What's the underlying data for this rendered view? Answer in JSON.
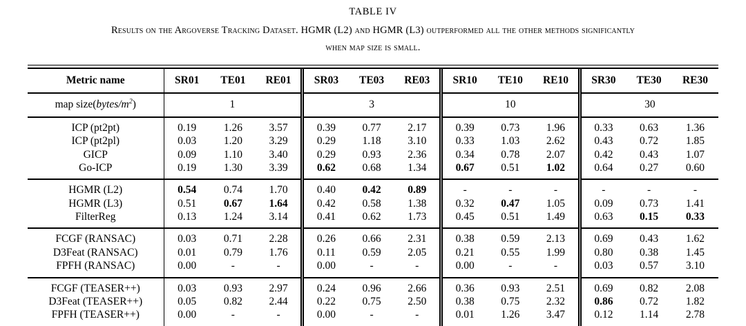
{
  "title": "TABLE IV",
  "caption": {
    "line1": "Results on the Argoverse Tracking Dataset. HGMR (L2) and HGMR (L3) outperformed all the other methods significantly",
    "line2": "when map size is small."
  },
  "colors": {
    "text": "#000000",
    "rules": "#000000",
    "background": "#ffffff"
  },
  "table": {
    "columns": [
      "Metric name",
      "SR01",
      "TE01",
      "RE01",
      "SR03",
      "TE03",
      "RE03",
      "SR10",
      "TE10",
      "RE10",
      "SR30",
      "TE30",
      "RE30"
    ],
    "map_row": {
      "label_prefix": "map size(",
      "label_italic": "bytes/m",
      "label_sup": "2",
      "label_suffix": ")",
      "values": [
        "1",
        "3",
        "10",
        "30"
      ]
    },
    "groups": [
      {
        "rows": [
          {
            "name": "ICP (pt2pt)",
            "values": [
              "0.19",
              "1.26",
              "3.57",
              "0.39",
              "0.77",
              "2.17",
              "0.39",
              "0.73",
              "1.96",
              "0.33",
              "0.63",
              "1.36"
            ],
            "bold": []
          },
          {
            "name": "ICP (pt2pl)",
            "values": [
              "0.03",
              "1.20",
              "3.29",
              "0.29",
              "1.18",
              "3.10",
              "0.33",
              "1.03",
              "2.62",
              "0.43",
              "0.72",
              "1.85"
            ],
            "bold": []
          },
          {
            "name": "GICP",
            "values": [
              "0.09",
              "1.10",
              "3.40",
              "0.29",
              "0.93",
              "2.36",
              "0.34",
              "0.78",
              "2.07",
              "0.42",
              "0.43",
              "1.07"
            ],
            "bold": []
          },
          {
            "name": "Go-ICP",
            "values": [
              "0.19",
              "1.30",
              "3.39",
              "0.62",
              "0.68",
              "1.34",
              "0.67",
              "0.51",
              "1.02",
              "0.64",
              "0.27",
              "0.60"
            ],
            "bold": [
              3,
              6,
              8
            ]
          }
        ]
      },
      {
        "rows": [
          {
            "name": "HGMR (L2)",
            "values": [
              "0.54",
              "0.74",
              "1.70",
              "0.40",
              "0.42",
              "0.89",
              "-",
              "-",
              "-",
              "-",
              "-",
              "-"
            ],
            "bold": [
              0,
              4,
              5
            ]
          },
          {
            "name": "HGMR (L3)",
            "values": [
              "0.51",
              "0.67",
              "1.64",
              "0.42",
              "0.58",
              "1.38",
              "0.32",
              "0.47",
              "1.05",
              "0.09",
              "0.73",
              "1.41"
            ],
            "bold": [
              1,
              2,
              7
            ]
          },
          {
            "name": "FilterReg",
            "values": [
              "0.13",
              "1.24",
              "3.14",
              "0.41",
              "0.62",
              "1.73",
              "0.45",
              "0.51",
              "1.49",
              "0.63",
              "0.15",
              "0.33"
            ],
            "bold": [
              10,
              11
            ]
          }
        ]
      },
      {
        "rows": [
          {
            "name": "FCGF (RANSAC)",
            "values": [
              "0.03",
              "0.71",
              "2.28",
              "0.26",
              "0.66",
              "2.31",
              "0.38",
              "0.59",
              "2.13",
              "0.69",
              "0.43",
              "1.62"
            ],
            "bold": []
          },
          {
            "name": "D3Feat (RANSAC)",
            "values": [
              "0.01",
              "0.79",
              "1.76",
              "0.11",
              "0.59",
              "2.05",
              "0.21",
              "0.55",
              "1.99",
              "0.80",
              "0.38",
              "1.45"
            ],
            "bold": []
          },
          {
            "name": "FPFH (RANSAC)",
            "values": [
              "0.00",
              "-",
              "-",
              "0.00",
              "-",
              "-",
              "0.00",
              "-",
              "-",
              "0.03",
              "0.57",
              "3.10"
            ],
            "bold": []
          }
        ]
      },
      {
        "rows": [
          {
            "name": "FCGF (TEASER++)",
            "values": [
              "0.03",
              "0.93",
              "2.97",
              "0.24",
              "0.96",
              "2.66",
              "0.36",
              "0.93",
              "2.51",
              "0.69",
              "0.82",
              "2.08"
            ],
            "bold": []
          },
          {
            "name": "D3Feat (TEASER++)",
            "values": [
              "0.05",
              "0.82",
              "2.44",
              "0.22",
              "0.75",
              "2.50",
              "0.38",
              "0.75",
              "2.32",
              "0.86",
              "0.72",
              "1.82"
            ],
            "bold": [
              9
            ]
          },
          {
            "name": "FPFH (TEASER++)",
            "values": [
              "0.00",
              "-",
              "-",
              "0.00",
              "-",
              "-",
              "0.01",
              "1.26",
              "3.47",
              "0.12",
              "1.14",
              "2.78"
            ],
            "bold": []
          }
        ]
      }
    ]
  }
}
